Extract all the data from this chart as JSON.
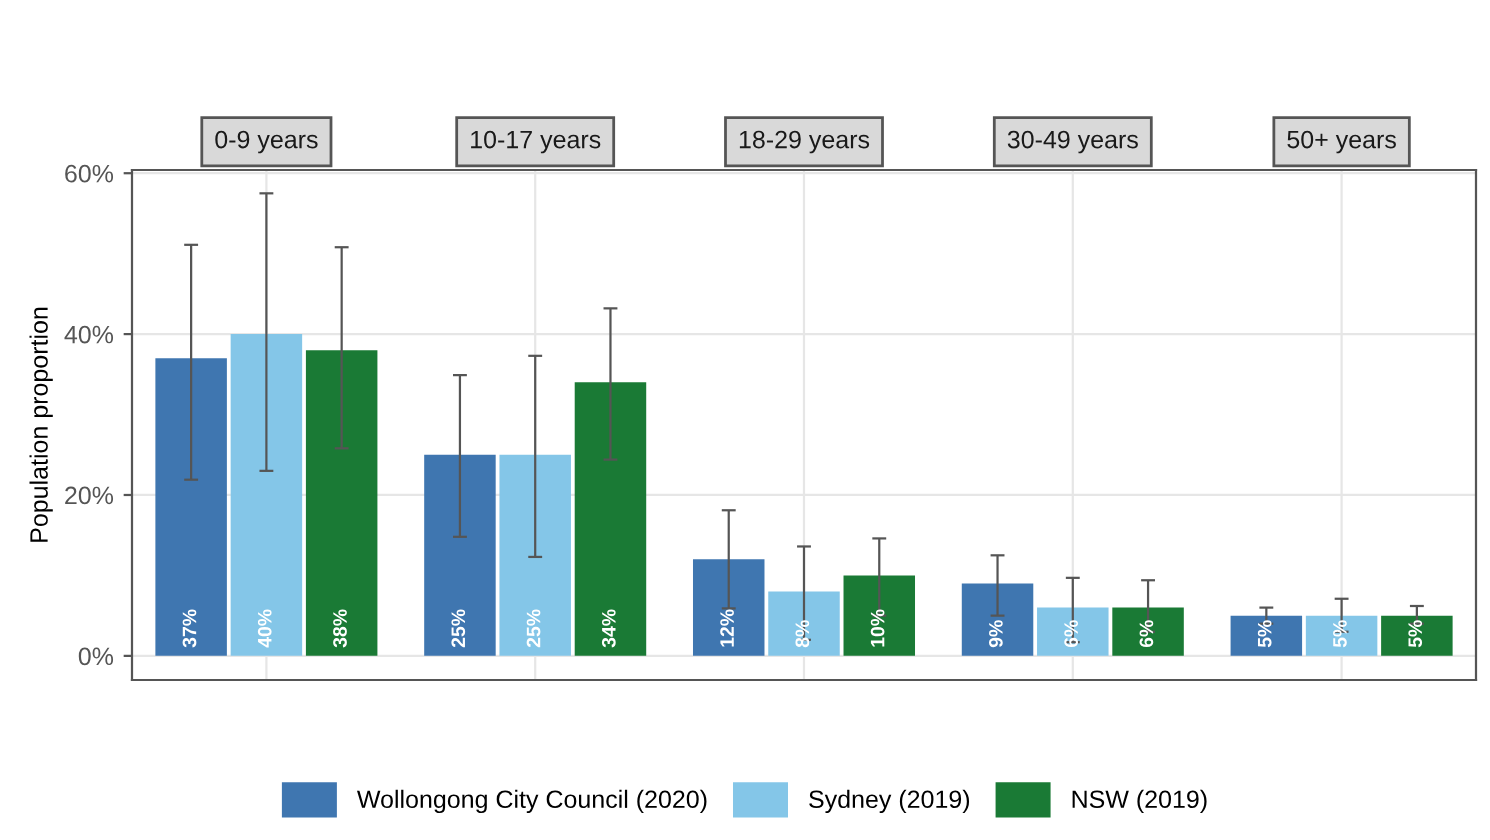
{
  "chart_data": {
    "type": "bar",
    "ylabel": "Population proportion",
    "categories": [
      "0-9 years",
      "10-17 years",
      "18-29 years",
      "30-49 years",
      "50+ years"
    ],
    "ylim": [
      -3,
      60.4
    ],
    "yticks": [
      {
        "value": 0,
        "label": "0%"
      },
      {
        "value": 20,
        "label": "20%"
      },
      {
        "value": 40,
        "label": "40%"
      },
      {
        "value": 60,
        "label": "60%"
      }
    ],
    "grid": true,
    "legend": "bottom",
    "series": [
      {
        "name": "Wollongong City Council (2020)",
        "color": "#3f76b0",
        "values": [
          37,
          25,
          12,
          9,
          5
        ],
        "errors": [
          [
            21.9,
            51.1
          ],
          [
            14.8,
            34.9
          ],
          [
            5.9,
            18.1
          ],
          [
            5,
            12.5
          ],
          [
            4,
            6.0
          ]
        ],
        "value_labels": [
          "37%",
          "25%",
          "12%",
          "9%",
          "5%"
        ]
      },
      {
        "name": "Sydney (2019)",
        "color": "#84c6e8",
        "values": [
          40,
          25,
          8,
          6,
          5
        ],
        "errors": [
          [
            23.0,
            57.5
          ],
          [
            12.3,
            37.3
          ],
          [
            2,
            13.6
          ],
          [
            1.7,
            9.7
          ],
          [
            3,
            7.1
          ]
        ],
        "value_labels": [
          "40%",
          "25%",
          "8%",
          "6%",
          "5%"
        ]
      },
      {
        "name": "NSW (2019)",
        "color": "#1a7a35",
        "values": [
          38,
          34,
          10,
          6,
          5
        ],
        "errors": [
          [
            25.8,
            50.8
          ],
          [
            24.4,
            43.2
          ],
          [
            5,
            14.6
          ],
          [
            3,
            9.4
          ],
          [
            4,
            6.2
          ]
        ],
        "value_labels": [
          "38%",
          "34%",
          "10%",
          "6%",
          "5%"
        ]
      }
    ]
  }
}
